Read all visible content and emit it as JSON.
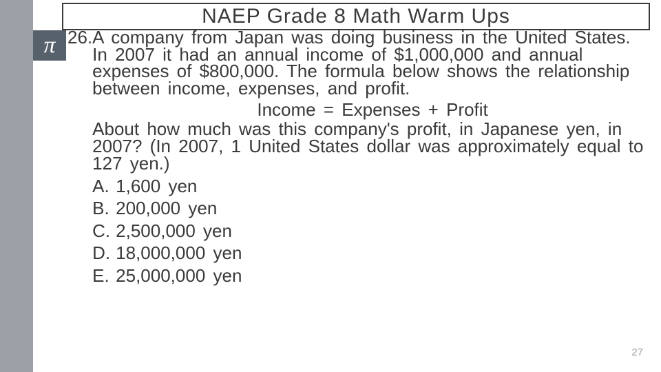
{
  "colors": {
    "left_strip": "#9aa0a6",
    "pi_box_bg": "#57616b",
    "pi_box_fg": "#ffffff",
    "title_border": "#3a3a3a",
    "body_text": "#3a3a3a",
    "page_num": "#9aa0a6",
    "background": "#ffffff"
  },
  "title": "NAEP Grade 8 Math Warm Ups",
  "pi_symbol": "π",
  "question": {
    "number": "26.",
    "paragraph1": "A company from Japan was doing business in the United States.  In 2007 it had an annual income of $1,000,000 and annual expenses of $800,000.  The formula below shows the relationship between income, expenses, and profit.",
    "formula": "Income = Expenses + Profit",
    "paragraph2": "About how much was this company's profit, in Japanese yen, in 2007?  (In 2007, 1 United States dollar was approximately equal to 127 yen.)"
  },
  "answers": [
    {
      "letter": "A.",
      "text": "1,600 yen"
    },
    {
      "letter": "B.",
      "text": "200,000 yen"
    },
    {
      "letter": "C.",
      "text": "2,500,000 yen"
    },
    {
      "letter": "D.",
      "text": "18,000,000 yen"
    },
    {
      "letter": "E.",
      "text": "25,000,000 yen"
    }
  ],
  "page_number": "27"
}
